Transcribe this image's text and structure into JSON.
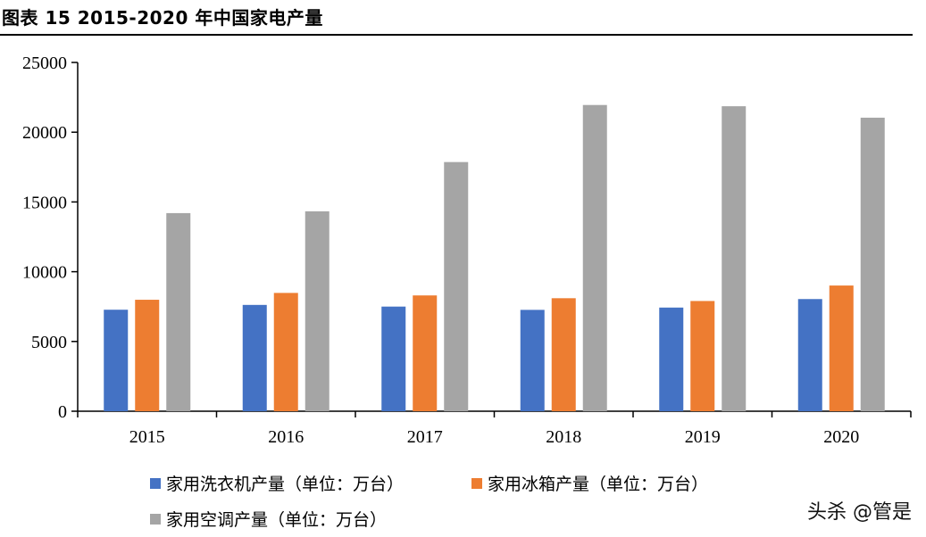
{
  "title": "图表 15 2015-2020 年中国家电产量",
  "watermark": "头杀 @管是",
  "chart_data": {
    "type": "bar",
    "categories": [
      "2015",
      "2016",
      "2017",
      "2018",
      "2019",
      "2020"
    ],
    "series": [
      {
        "name": "家用洗衣机产量（单位：万台）",
        "color": "#4472C4",
        "values": [
          7275,
          7620,
          7500,
          7265,
          7430,
          8040
        ]
      },
      {
        "name": "家用冰箱产量（单位：万台）",
        "color": "#ED7D31",
        "values": [
          7990,
          8480,
          8300,
          8100,
          7900,
          9010
        ]
      },
      {
        "name": "家用空调产量（单位：万台）",
        "color": "#A5A5A5",
        "values": [
          14200,
          14330,
          17860,
          21950,
          21860,
          21040
        ]
      }
    ],
    "yticks": [
      "0",
      "5000",
      "10000",
      "15000",
      "20000",
      "25000"
    ],
    "ylim": [
      0,
      25000
    ],
    "grid": false,
    "legend_position": "bottom"
  }
}
